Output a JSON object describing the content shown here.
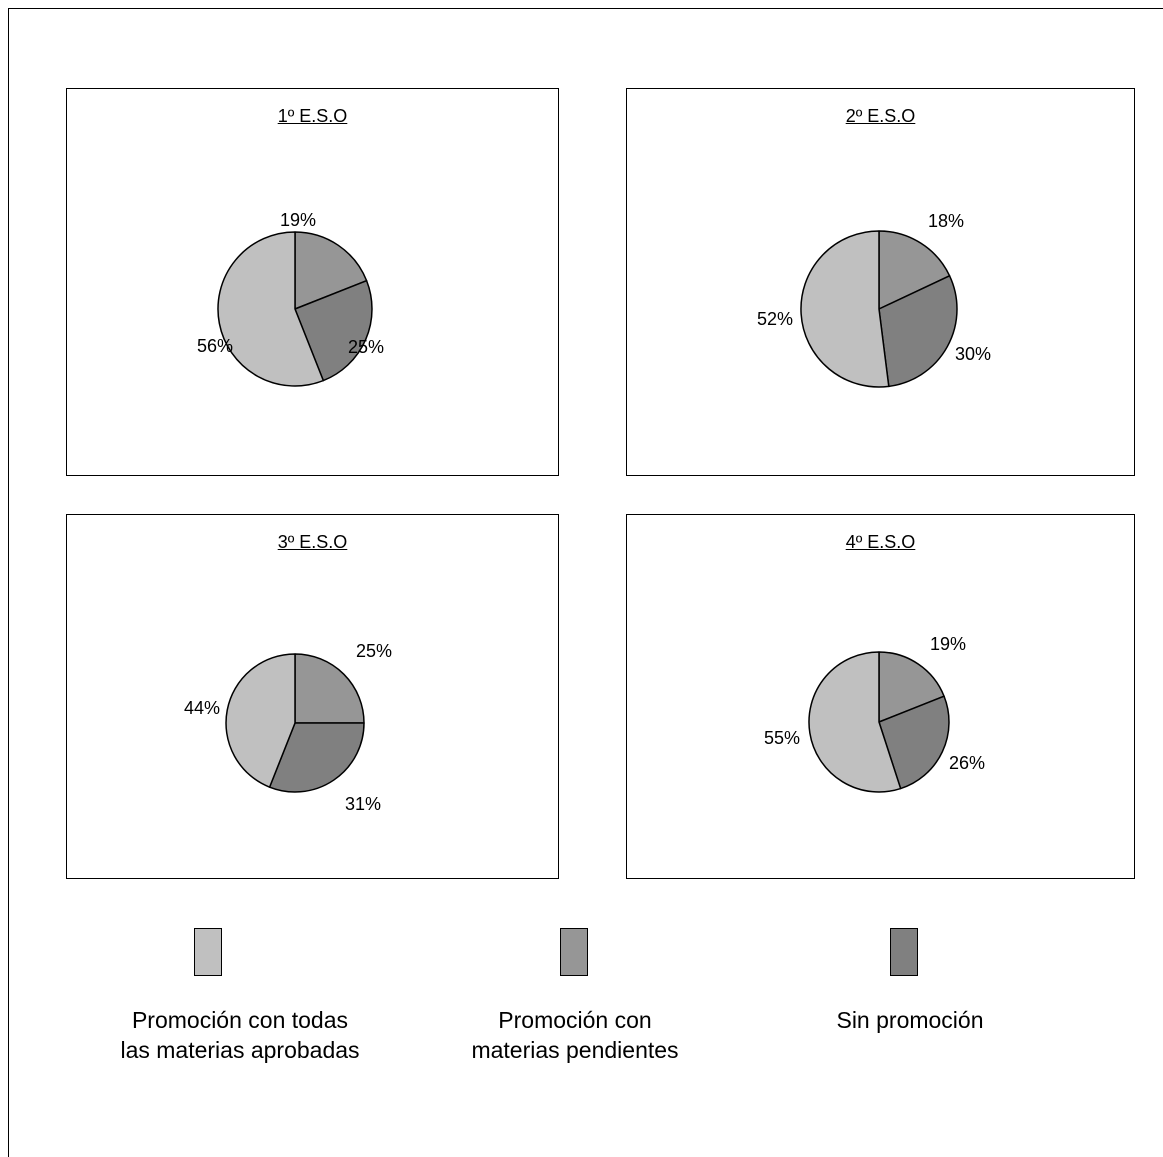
{
  "chart_data": [
    {
      "type": "pie",
      "title": "1º E.S.O",
      "series": [
        {
          "name": "Promoción con todas las materias aprobadas",
          "label": "56%",
          "value": 56
        },
        {
          "name": "Promoción con materias pendientes",
          "label": "19%",
          "value": 19
        },
        {
          "name": "Sin promoción",
          "label": "25%",
          "value": 25
        }
      ]
    },
    {
      "type": "pie",
      "title": "2º E.S.O",
      "series": [
        {
          "name": "Promoción con todas las materias aprobadas",
          "label": "52%",
          "value": 52
        },
        {
          "name": "Promoción con materias pendientes",
          "label": "18%",
          "value": 18
        },
        {
          "name": "Sin promoción",
          "label": "30%",
          "value": 30
        }
      ]
    },
    {
      "type": "pie",
      "title": "3º E.S.O",
      "series": [
        {
          "name": "Promoción con todas las materias aprobadas",
          "label": "44%",
          "value": 44
        },
        {
          "name": "Promoción con materias pendientes",
          "label": "25%",
          "value": 25
        },
        {
          "name": "Sin promoción",
          "label": "31%",
          "value": 31
        }
      ]
    },
    {
      "type": "pie",
      "title": "4º E.S.O",
      "series": [
        {
          "name": "Promoción con todas las materias aprobadas",
          "label": "55%",
          "value": 55
        },
        {
          "name": "Promoción con materias pendientes",
          "label": "19%",
          "value": 19
        },
        {
          "name": "Sin promoción",
          "label": "26%",
          "value": 26
        }
      ]
    }
  ],
  "legend": [
    {
      "label": "Promoción con todas\nlas materias aprobadas",
      "color": "#c0c0c0"
    },
    {
      "label": "Promoción con\nmaterias pendientes",
      "color": "#969696"
    },
    {
      "label": "Sin promoción",
      "color": "#808080"
    }
  ],
  "colors": {
    "approved": "#c0c0c0",
    "pending": "#969696",
    "no_promotion": "#808080",
    "outline": "#000000"
  }
}
